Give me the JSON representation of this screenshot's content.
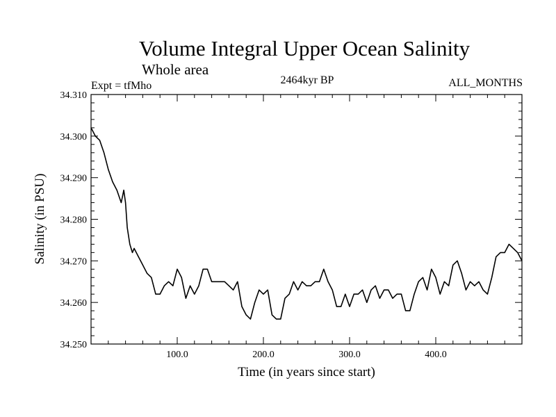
{
  "chart_data": {
    "type": "line",
    "title": "Volume Integral Upper Ocean Salinity",
    "subtitle": "Whole area",
    "experiment": "Expt = tfMho",
    "period": "2464kyr BP",
    "months": "ALL_MONTHS",
    "xlabel": "Time (in years since start)",
    "ylabel": "Salinity (in PSU)",
    "xlim": [
      0,
      500
    ],
    "ylim": [
      34.25,
      34.31
    ],
    "xticks": [
      {
        "value": 100,
        "label": "100.0"
      },
      {
        "value": 200,
        "label": "200.0"
      },
      {
        "value": 300,
        "label": "300.0"
      },
      {
        "value": 400,
        "label": "400.0"
      }
    ],
    "yticks": [
      {
        "value": 34.25,
        "label": "34.250"
      },
      {
        "value": 34.26,
        "label": "34.260"
      },
      {
        "value": 34.27,
        "label": "34.270"
      },
      {
        "value": 34.28,
        "label": "34.280"
      },
      {
        "value": 34.29,
        "label": "34.290"
      },
      {
        "value": 34.3,
        "label": "34.300"
      },
      {
        "value": 34.31,
        "label": "34.310"
      }
    ],
    "series": [
      {
        "name": "Salinity",
        "x": [
          0,
          5,
          10,
          15,
          20,
          25,
          30,
          35,
          38,
          40,
          42,
          45,
          48,
          50,
          55,
          60,
          65,
          70,
          75,
          80,
          85,
          90,
          95,
          100,
          105,
          110,
          115,
          120,
          125,
          130,
          135,
          140,
          145,
          150,
          155,
          160,
          165,
          170,
          175,
          180,
          185,
          190,
          195,
          200,
          205,
          210,
          215,
          220,
          225,
          230,
          235,
          240,
          245,
          250,
          255,
          260,
          265,
          270,
          275,
          280,
          285,
          290,
          295,
          300,
          305,
          310,
          315,
          320,
          325,
          330,
          335,
          340,
          345,
          350,
          355,
          360,
          365,
          370,
          375,
          380,
          385,
          390,
          395,
          400,
          405,
          410,
          415,
          420,
          425,
          430,
          435,
          440,
          445,
          450,
          455,
          460,
          465,
          470,
          475,
          480,
          485,
          490,
          495,
          500
        ],
        "values": [
          34.302,
          34.3,
          34.299,
          34.296,
          34.292,
          34.289,
          34.287,
          34.284,
          34.287,
          34.284,
          34.278,
          34.274,
          34.272,
          34.273,
          34.271,
          34.269,
          34.267,
          34.266,
          34.262,
          34.262,
          34.264,
          34.265,
          34.264,
          34.268,
          34.266,
          34.261,
          34.264,
          34.262,
          34.264,
          34.268,
          34.268,
          34.265,
          34.265,
          34.265,
          34.265,
          34.264,
          34.263,
          34.265,
          34.259,
          34.257,
          34.256,
          34.26,
          34.263,
          34.262,
          34.263,
          34.257,
          34.256,
          34.256,
          34.261,
          34.262,
          34.265,
          34.263,
          34.265,
          34.264,
          34.264,
          34.265,
          34.265,
          34.268,
          34.265,
          34.263,
          34.259,
          34.259,
          34.262,
          34.259,
          34.262,
          34.262,
          34.263,
          34.26,
          34.263,
          34.264,
          34.261,
          34.263,
          34.263,
          34.261,
          34.262,
          34.262,
          34.258,
          34.258,
          34.262,
          34.265,
          34.266,
          34.263,
          34.268,
          34.266,
          34.262,
          34.265,
          34.264,
          34.269,
          34.27,
          34.267,
          34.263,
          34.265,
          34.264,
          34.265,
          34.263,
          34.262,
          34.266,
          34.271,
          34.272,
          34.272,
          34.274,
          34.273,
          34.272,
          34.27
        ]
      }
    ]
  }
}
